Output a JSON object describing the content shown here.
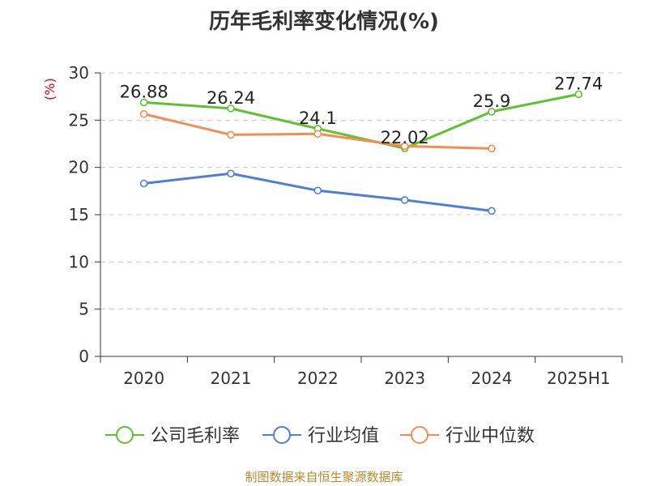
{
  "header": {
    "title": "历年毛利率变化情况(%)"
  },
  "footer": {
    "source": "制图数据来自恒生聚源数据库"
  },
  "chart_data": {
    "type": "line",
    "title": "历年毛利率变化情况(%)",
    "ylabel": "(%)",
    "xlabel": "",
    "categories": [
      "2020",
      "2021",
      "2022",
      "2023",
      "2024",
      "2025H1"
    ],
    "ylim": [
      0,
      30
    ],
    "yticks": [
      0,
      5,
      10,
      15,
      20,
      25,
      30
    ],
    "grid": true,
    "legend_position": "bottom",
    "series": [
      {
        "name": "公司毛利率",
        "color": "#5ec12d",
        "values": [
          26.88,
          26.24,
          24.1,
          22.02,
          25.9,
          27.74
        ],
        "labels": [
          "26.88",
          "26.24",
          "24.1",
          "22.02",
          "25.9",
          "27.74"
        ]
      },
      {
        "name": "行业均值",
        "color": "#4f7ed9",
        "values": [
          18.3,
          19.35,
          17.55,
          16.55,
          15.4,
          null
        ]
      },
      {
        "name": "行业中位数",
        "color": "#f48d52",
        "values": [
          25.65,
          23.45,
          23.55,
          22.25,
          22.0,
          null
        ]
      }
    ]
  }
}
